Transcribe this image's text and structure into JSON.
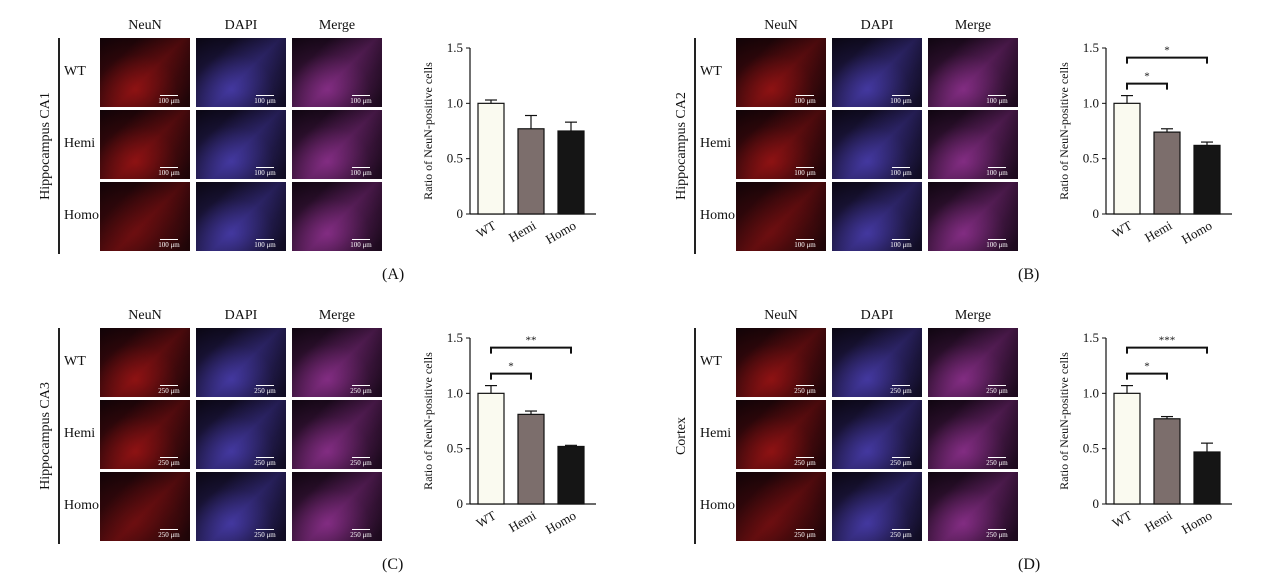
{
  "columns": [
    "NeuN",
    "DAPI",
    "Merge"
  ],
  "rows": [
    "WT",
    "Hemi",
    "Homo"
  ],
  "colors": {
    "wt": "#fafaf0",
    "hemi": "#7c6e6c",
    "homo": "#151515",
    "neun": "#c01818",
    "dapi": "#5a4cd8",
    "merge": "#b03cb0"
  },
  "panels": [
    {
      "tag": "(A)",
      "region": "Hippocampus CA1",
      "scale": "100 μm"
    },
    {
      "tag": "(B)",
      "region": "Hippocampus CA2",
      "scale": "100 μm"
    },
    {
      "tag": "(C)",
      "region": "Hippocampus CA3",
      "scale": "250 μm"
    },
    {
      "tag": "(D)",
      "region": "Cortex",
      "scale": "250 μm"
    }
  ],
  "chart_data": [
    {
      "type": "bar",
      "categories": [
        "WT",
        "Hemi",
        "Homo"
      ],
      "values": [
        1.0,
        0.77,
        0.75
      ],
      "errors": [
        0.03,
        0.12,
        0.08
      ],
      "ylabel": "Ratio of NeuN-positive cells",
      "ylim": [
        0,
        1.5
      ],
      "yticks": [
        "0",
        "0.5",
        "1.0",
        "1.5"
      ],
      "significance": []
    },
    {
      "type": "bar",
      "categories": [
        "WT",
        "Hemi",
        "Homo"
      ],
      "values": [
        1.0,
        0.74,
        0.62
      ],
      "errors": [
        0.07,
        0.03,
        0.03
      ],
      "ylabel": "Ratio of NeuN-positive cells",
      "ylim": [
        0,
        1.5
      ],
      "yticks": [
        "0",
        "0.5",
        "1.0",
        "1.5"
      ],
      "significance": [
        {
          "from": 0,
          "to": 1,
          "label": "*"
        },
        {
          "from": 0,
          "to": 2,
          "label": "*"
        }
      ]
    },
    {
      "type": "bar",
      "categories": [
        "WT",
        "Hemi",
        "Homo"
      ],
      "values": [
        1.0,
        0.81,
        0.52
      ],
      "errors": [
        0.07,
        0.03,
        0.01
      ],
      "ylabel": "Ratio of NeuN-positive cells",
      "ylim": [
        0,
        1.5
      ],
      "yticks": [
        "0",
        "0.5",
        "1.0",
        "1.5"
      ],
      "significance": [
        {
          "from": 0,
          "to": 1,
          "label": "*"
        },
        {
          "from": 0,
          "to": 2,
          "label": "**"
        }
      ]
    },
    {
      "type": "bar",
      "categories": [
        "WT",
        "Hemi",
        "Homo"
      ],
      "values": [
        1.0,
        0.77,
        0.47
      ],
      "errors": [
        0.07,
        0.02,
        0.08
      ],
      "ylabel": "Ratio of NeuN-positive cells",
      "ylim": [
        0,
        1.5
      ],
      "yticks": [
        "0",
        "0.5",
        "1.0",
        "1.5"
      ],
      "significance": [
        {
          "from": 0,
          "to": 1,
          "label": "*"
        },
        {
          "from": 0,
          "to": 2,
          "label": "***"
        }
      ]
    }
  ]
}
